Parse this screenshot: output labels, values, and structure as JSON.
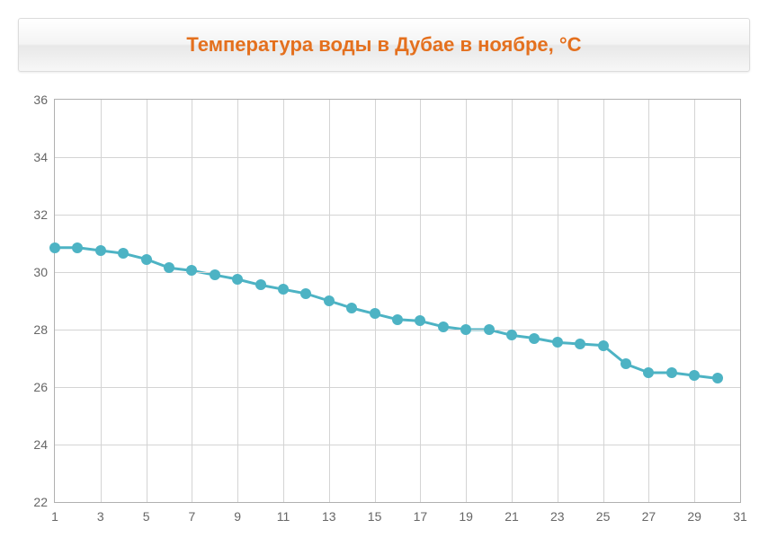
{
  "title": "Температура воды в Дубае в ноябре, °C",
  "title_color": "#e4701e",
  "title_fontsize": 22,
  "chart": {
    "type": "line",
    "ylim": [
      22,
      36
    ],
    "yticks": [
      22,
      24,
      26,
      28,
      30,
      32,
      34,
      36
    ],
    "xlim": [
      1,
      31
    ],
    "xticks": [
      1,
      3,
      5,
      7,
      9,
      11,
      13,
      15,
      17,
      19,
      21,
      23,
      25,
      27,
      29,
      31
    ],
    "x": [
      1,
      2,
      3,
      4,
      5,
      6,
      7,
      8,
      9,
      10,
      11,
      12,
      13,
      14,
      15,
      16,
      17,
      18,
      19,
      20,
      21,
      22,
      23,
      24,
      25,
      26,
      27,
      28,
      29,
      30
    ],
    "y": [
      30.85,
      30.85,
      30.75,
      30.65,
      30.45,
      30.15,
      30.05,
      29.9,
      29.75,
      29.55,
      29.4,
      29.25,
      29.0,
      28.75,
      28.55,
      28.35,
      28.3,
      28.1,
      28.0,
      28.0,
      27.8,
      27.7,
      27.55,
      27.5,
      27.45,
      26.8,
      26.5,
      26.5,
      26.4,
      26.3
    ],
    "line_color": "#4db3c4",
    "line_width": 3,
    "marker_color": "#4db3c4",
    "marker_radius": 6,
    "grid_color": "#d4d4d4",
    "axis_color": "#b0b0b0",
    "tick_label_color": "#666666",
    "tick_fontsize": 14,
    "background_color": "#ffffff"
  }
}
